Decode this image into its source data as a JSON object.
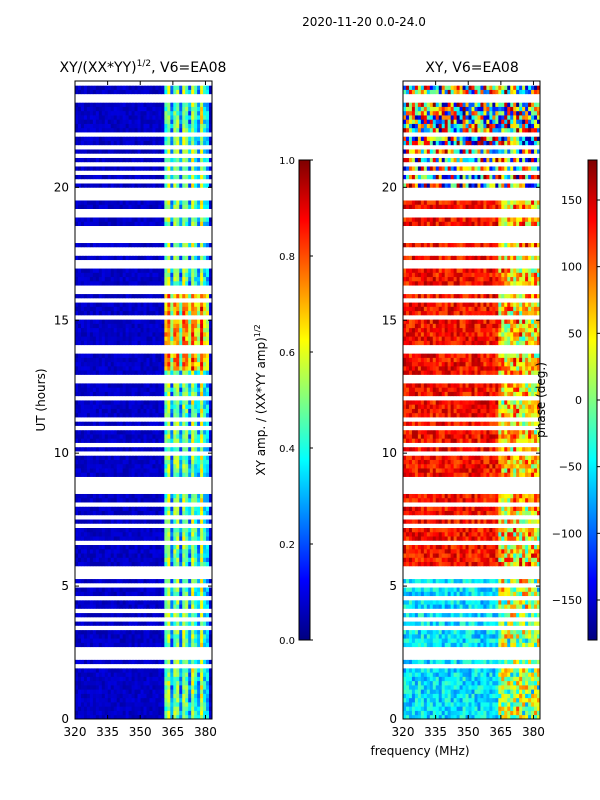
{
  "figure": {
    "suptitle": "2020-11-20 0.0-24.0"
  },
  "chart_data": [
    {
      "type": "heatmap",
      "title": "XY/(XX*YY)^1/2, V6=EA08",
      "title_main": "XY/(XX*YY)",
      "title_sup": "1/2",
      "title_rest": ", V6=EA08",
      "xlabel": "",
      "ylabel": "UT (hours)",
      "xlim": [
        320,
        383
      ],
      "ylim": [
        0,
        24
      ],
      "xticks": [
        "320",
        "335",
        "350",
        "365",
        "380"
      ],
      "xtick_values": [
        320,
        335,
        350,
        365,
        380
      ],
      "yticks": [
        "0",
        "5",
        "10",
        "15",
        "20"
      ],
      "ytick_values": [
        0,
        5,
        10,
        15,
        20
      ],
      "colormap": "jet",
      "colorbar": {
        "label": "XY amp. / (XX*YY amp)^1/2",
        "label_main": "XY amp. / (XX*YY amp)",
        "label_sup": "1/2",
        "range": [
          0.0,
          1.0
        ],
        "ticks": [
          "0.0",
          "0.2",
          "0.4",
          "0.6",
          "0.8",
          "1.0"
        ],
        "tick_values": [
          0.0,
          0.2,
          0.4,
          0.6,
          0.8,
          1.0
        ]
      },
      "description_bands": [
        {
          "freq_range": [
            320,
            361
          ],
          "level": 0.05
        },
        {
          "freq_range": [
            361,
            381
          ],
          "level": 0.45
        }
      ]
    },
    {
      "type": "heatmap",
      "title": "XY, V6=EA08",
      "xlabel": "frequency (MHz)",
      "ylabel": "",
      "xlim": [
        320,
        383
      ],
      "ylim": [
        0,
        24
      ],
      "xticks": [
        "320",
        "335",
        "350",
        "365",
        "380"
      ],
      "xtick_values": [
        320,
        335,
        350,
        365,
        380
      ],
      "yticks": [
        "0",
        "5",
        "10",
        "15",
        "20"
      ],
      "ytick_values": [
        0,
        5,
        10,
        15,
        20
      ],
      "colormap": "jet",
      "colorbar": {
        "label": "phase (deg.)",
        "range": [
          -180,
          180
        ],
        "ticks": [
          "−150",
          "−100",
          "−50",
          "0",
          "50",
          "100",
          "150"
        ],
        "tick_values": [
          -150,
          -100,
          -50,
          0,
          50,
          100,
          150
        ]
      }
    }
  ],
  "colors": {
    "jet": [
      "#00007f",
      "#0000ff",
      "#0080ff",
      "#00ffff",
      "#80ff80",
      "#ffff00",
      "#ff8000",
      "#ff0000",
      "#7f0000"
    ],
    "gap": "#ffffff"
  }
}
